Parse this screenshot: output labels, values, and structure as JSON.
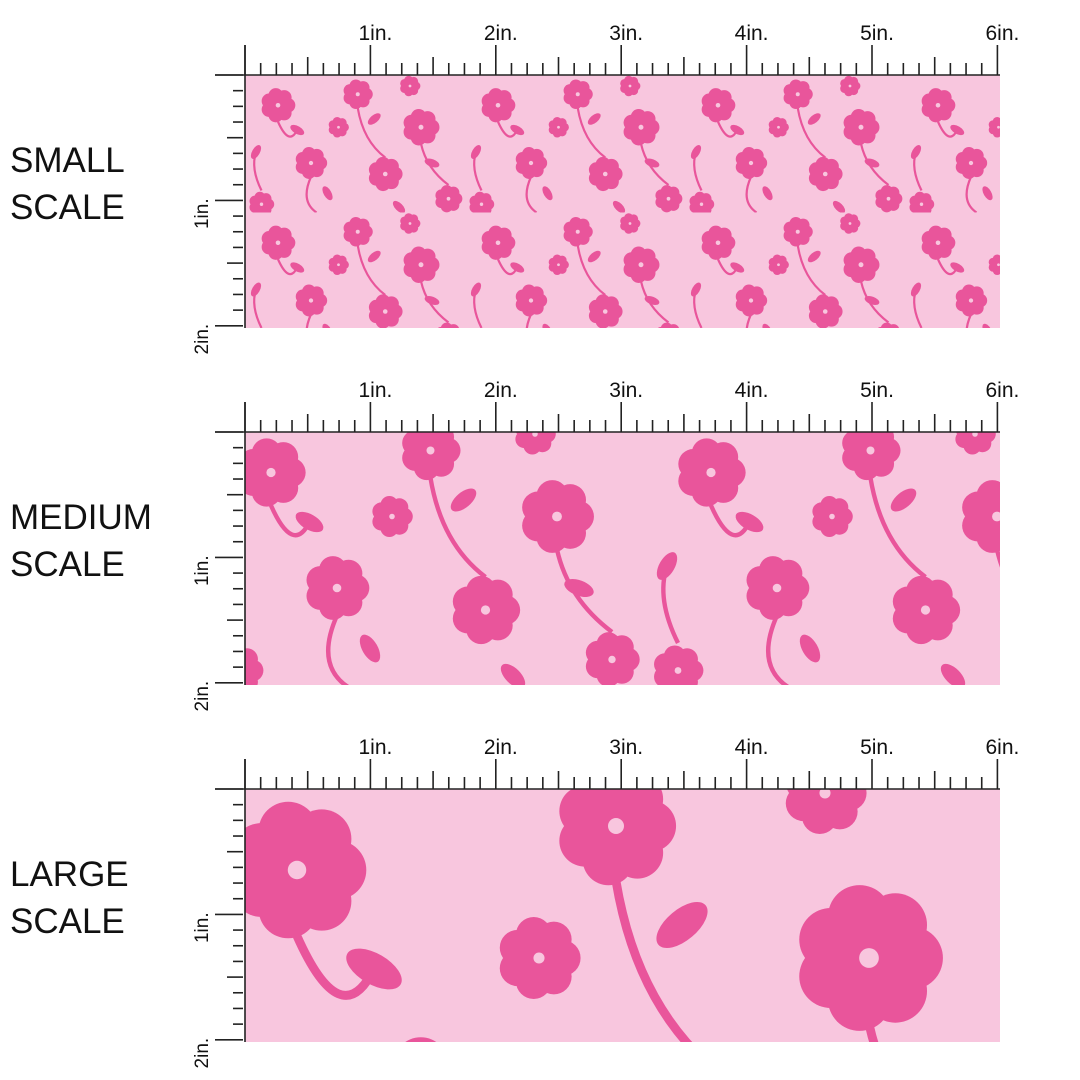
{
  "panels": [
    {
      "label": [
        "SMALL",
        "SCALE"
      ],
      "ruler_x": [
        "1in.",
        "2in.",
        "3in.",
        "4in.",
        "5in.",
        "6in."
      ],
      "ruler_y": [
        "1in.",
        "2in."
      ]
    },
    {
      "label": [
        "MEDIUM",
        "SCALE"
      ],
      "ruler_x": [
        "1in.",
        "2in.",
        "3in.",
        "4in.",
        "5in.",
        "6in."
      ],
      "ruler_y": [
        "1in.",
        "2in."
      ]
    },
    {
      "label": [
        "LARGE",
        "SCALE"
      ],
      "ruler_x": [
        "1in.",
        "2in.",
        "3in.",
        "4in.",
        "5in.",
        "6in."
      ],
      "ruler_y": [
        "1in.",
        "2in."
      ]
    }
  ]
}
